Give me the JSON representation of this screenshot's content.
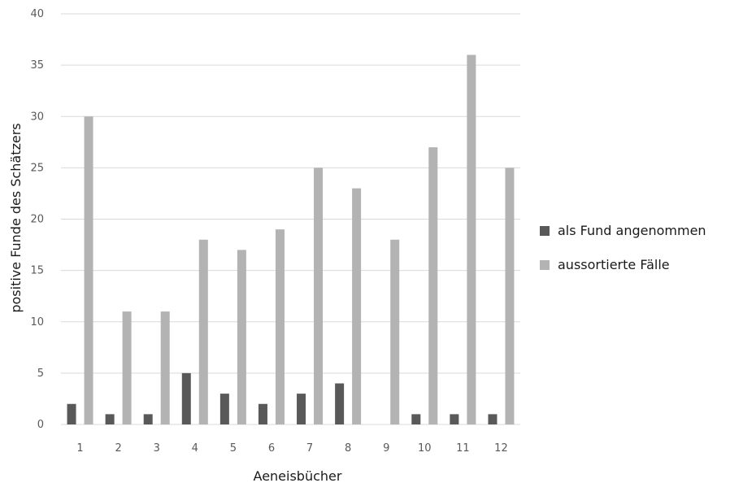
{
  "chart_data": {
    "type": "bar",
    "categories": [
      "1",
      "2",
      "3",
      "4",
      "5",
      "6",
      "7",
      "8",
      "9",
      "10",
      "11",
      "12"
    ],
    "series": [
      {
        "name": "als Fund angenommen",
        "color": "#595959",
        "values": [
          2,
          1,
          1,
          5,
          3,
          2,
          3,
          4,
          0,
          1,
          1,
          1
        ]
      },
      {
        "name": "aussortierte Fälle",
        "color": "#b3b3b3",
        "values": [
          30,
          11,
          11,
          18,
          17,
          19,
          25,
          23,
          18,
          27,
          36,
          25
        ]
      }
    ],
    "xlabel": "Aeneisbücher",
    "ylabel": "positive Funde des Schätzers",
    "ylim": [
      0,
      40
    ],
    "yticks": [
      0,
      5,
      10,
      15,
      20,
      25,
      30,
      35,
      40
    ],
    "grid": true,
    "gridColor": "#d9d9d9",
    "legend": "right"
  }
}
